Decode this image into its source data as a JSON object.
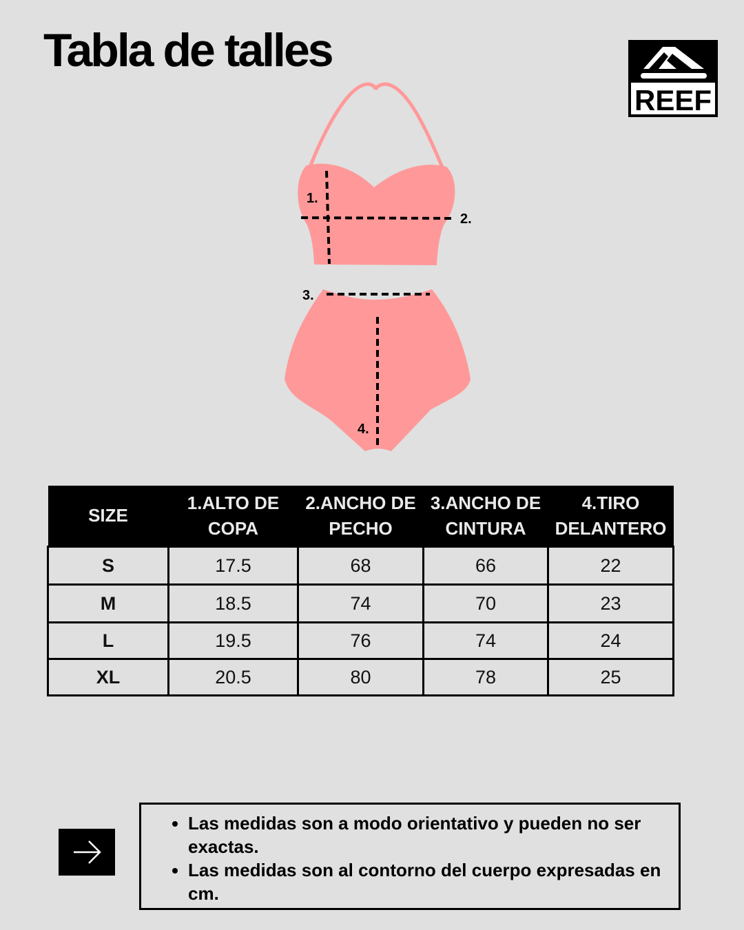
{
  "title": "Tabla de talles",
  "logo": {
    "text": "REEF"
  },
  "diagram": {
    "labels": [
      "1.",
      "2.",
      "3.",
      "4."
    ],
    "fill_color": "#ff9999"
  },
  "table": {
    "headers": [
      [
        "SIZE"
      ],
      [
        "1.ALTO DE",
        "COPA"
      ],
      [
        "2.ANCHO DE",
        "PECHO"
      ],
      [
        "3.ANCHO DE",
        "CINTURA"
      ],
      [
        "4.TIRO",
        "DELANTERO"
      ]
    ],
    "rows": [
      [
        "S",
        "17.5",
        "68",
        "66",
        "22"
      ],
      [
        "M",
        "18.5",
        "74",
        "70",
        "23"
      ],
      [
        "L",
        "19.5",
        "76",
        "74",
        "24"
      ],
      [
        "XL",
        "20.5",
        "80",
        "78",
        "25"
      ]
    ]
  },
  "notes": [
    "Las medidas son a modo orientativo y pueden no ser exactas.",
    "Las medidas son al contorno del cuerpo expresadas en cm."
  ],
  "arrow_icon": "arrow-right-icon"
}
